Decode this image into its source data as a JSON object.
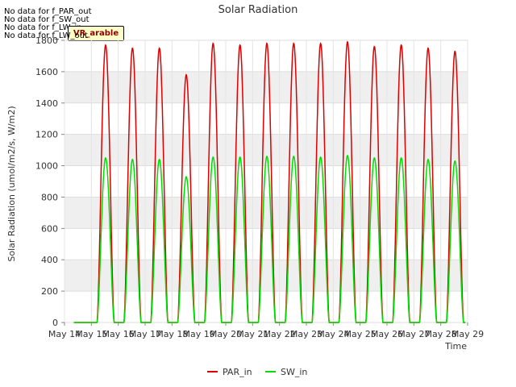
{
  "no_data_messages": [
    "No data for f_PAR_out",
    "No data for f_SW_out",
    "No data for f_LW_in",
    "No data for f_LW_out"
  ],
  "badge": "VR_arable",
  "chart_data": {
    "type": "line",
    "title": "Solar Radiation",
    "xlabel": "Time",
    "ylabel": "Solar Radiation (umol/m2/s, W/m2)",
    "ylim": [
      0,
      1800
    ],
    "yticks": [
      0,
      200,
      400,
      600,
      800,
      1000,
      1200,
      1400,
      1600,
      1800
    ],
    "xlim": [
      14,
      29
    ],
    "xticks": [
      14,
      15,
      16,
      17,
      18,
      19,
      20,
      21,
      22,
      23,
      24,
      25,
      26,
      27,
      28,
      29
    ],
    "xtick_labels": [
      "May 14",
      "May 15",
      "May 16",
      "May 17",
      "May 18",
      "May 19",
      "May 20",
      "May 21",
      "May 22",
      "May 23",
      "May 24",
      "May 25",
      "May 26",
      "May 27",
      "May 28",
      "May 29"
    ],
    "grid": true,
    "legend_position": "bottom-center",
    "days": [
      15,
      16,
      17,
      18,
      19,
      20,
      21,
      22,
      23,
      24,
      25,
      26,
      27,
      28
    ],
    "series": [
      {
        "name": "PAR_in",
        "color": "#dd0000",
        "daily_peaks": [
          1770,
          1750,
          1750,
          1580,
          1780,
          1770,
          1780,
          1780,
          1780,
          1790,
          1760,
          1770,
          1750,
          1730
        ]
      },
      {
        "name": "SW_in",
        "color": "#00dd00",
        "daily_peaks": [
          1050,
          1040,
          1040,
          930,
          1055,
          1055,
          1060,
          1060,
          1055,
          1065,
          1050,
          1050,
          1040,
          1030
        ]
      }
    ],
    "data_start": 14.35,
    "data_end": 28.92
  }
}
